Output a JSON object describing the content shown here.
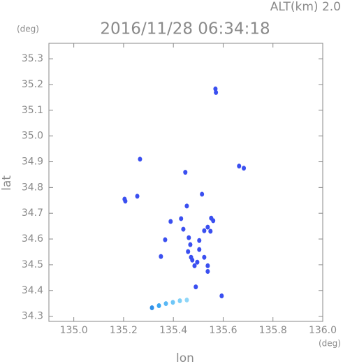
{
  "chart_data": {
    "type": "scatter",
    "title": "2016/11/28 06:34:18",
    "subtitle": "ALT(km) 2.0",
    "y_unit": "(deg)",
    "x_unit": "(deg)",
    "xlabel": "lon",
    "ylabel": "lat",
    "xlim": [
      134.9,
      136.0
    ],
    "ylim": [
      34.28,
      35.36
    ],
    "xticks": [
      {
        "value": 135,
        "label": "135.0"
      },
      135.2,
      135.4,
      135.6,
      135.8,
      {
        "value": 136,
        "label": "136.0"
      }
    ],
    "yticks": [
      34.3,
      34.4,
      34.5,
      34.6,
      34.7,
      34.8,
      34.9,
      {
        "value": 35,
        "label": "35.0"
      },
      35.1,
      35.2,
      35.3
    ],
    "x": [
      135.569,
      135.571,
      135.664,
      135.683,
      135.266,
      135.204,
      135.207,
      135.255,
      135.448,
      135.515,
      135.454,
      135.389,
      135.431,
      135.44,
      135.552,
      135.56,
      135.538,
      135.549,
      135.524,
      135.367,
      135.462,
      135.468,
      135.459,
      135.471,
      135.485,
      135.504,
      135.504,
      135.496,
      135.524,
      135.538,
      135.538,
      135.476,
      135.35,
      135.49,
      135.594,
      135.314,
      135.342,
      135.37,
      135.398,
      135.426,
      135.454
    ],
    "y": [
      35.183,
      35.169,
      34.883,
      34.875,
      34.91,
      34.755,
      34.747,
      34.766,
      34.859,
      34.774,
      34.728,
      34.668,
      34.679,
      34.638,
      34.681,
      34.671,
      34.646,
      34.63,
      34.632,
      34.597,
      34.605,
      34.578,
      34.551,
      34.529,
      34.496,
      34.559,
      34.594,
      34.51,
      34.529,
      34.496,
      34.474,
      34.518,
      34.532,
      34.414,
      34.379,
      34.333,
      34.341,
      34.349,
      34.354,
      34.36,
      34.363
    ],
    "colors": [
      "#3a4ff0",
      "#3a4ff0",
      "#3a4ff0",
      "#3a4ff0",
      "#3a4ff0",
      "#3a4ff0",
      "#3a4ff0",
      "#3a4ff0",
      "#3a4ff0",
      "#3a4ff0",
      "#3a4ff0",
      "#3a4ff0",
      "#3a4ff0",
      "#3a4ff0",
      "#3a4ff0",
      "#3a4ff0",
      "#3a4ff0",
      "#3a4ff0",
      "#3a4ff0",
      "#3a4ff0",
      "#3a4ff0",
      "#3a4ff0",
      "#3a4ff0",
      "#3a4ff0",
      "#3a4ff0",
      "#3a4ff0",
      "#3a4ff0",
      "#3a4ff0",
      "#3a4ff0",
      "#3a4ff0",
      "#3a4ff0",
      "#3a4ff0",
      "#3a4ff0",
      "#3a4ff0",
      "#3a4ff0",
      "#2f8fe8",
      "#3aa6f2",
      "#5ab8f5",
      "#6ec6f7",
      "#7fd0f8",
      "#8fd6f8"
    ]
  }
}
